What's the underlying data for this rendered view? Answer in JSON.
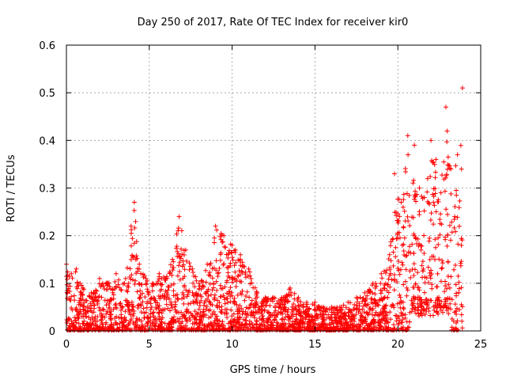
{
  "chart_data": {
    "type": "scatter",
    "title": "Day 250 of 2017, Rate Of TEC Index for receiver kir0",
    "xlabel": "GPS time / hours",
    "ylabel": "ROTI / TECUs",
    "xlim": [
      0,
      25
    ],
    "ylim": [
      0,
      0.6
    ],
    "xticks": [
      0,
      5,
      10,
      15,
      20,
      25
    ],
    "yticks": [
      0,
      0.1,
      0.2,
      0.3,
      0.4,
      0.5,
      0.6
    ],
    "xtick_labels": [
      "0",
      "5",
      "10",
      "15",
      "20",
      "25"
    ],
    "ytick_labels": [
      "0",
      "0.1",
      "0.2",
      "0.3",
      "0.4",
      "0.5",
      "0.6"
    ],
    "grid": true,
    "marker": "+",
    "series": [
      {
        "name": "ROTI",
        "color": "#ff0000",
        "envelope": {
          "hours": [
            0.0,
            0.3,
            0.6,
            1.0,
            1.5,
            2.0,
            2.5,
            3.0,
            3.5,
            3.9,
            4.1,
            4.4,
            4.8,
            5.2,
            5.6,
            6.0,
            6.4,
            6.8,
            7.2,
            7.6,
            8.0,
            8.5,
            9.0,
            9.5,
            10.0,
            10.5,
            11.0,
            11.5,
            12.0,
            12.5,
            13.0,
            13.5,
            14.0,
            14.5,
            15.0,
            15.5,
            16.0,
            16.5,
            17.0,
            17.5,
            18.0,
            18.5,
            19.0,
            19.5,
            19.8,
            20.2,
            20.6,
            21.0,
            21.3,
            21.6,
            22.0,
            22.3,
            22.6,
            22.9,
            23.2,
            23.6,
            23.9
          ],
          "peak": [
            0.14,
            0.12,
            0.13,
            0.09,
            0.08,
            0.11,
            0.1,
            0.12,
            0.1,
            0.22,
            0.27,
            0.14,
            0.11,
            0.1,
            0.12,
            0.11,
            0.15,
            0.24,
            0.17,
            0.13,
            0.1,
            0.14,
            0.22,
            0.2,
            0.18,
            0.16,
            0.13,
            0.08,
            0.07,
            0.07,
            0.07,
            0.09,
            0.07,
            0.06,
            0.06,
            0.05,
            0.05,
            0.05,
            0.06,
            0.07,
            0.08,
            0.1,
            0.12,
            0.16,
            0.33,
            0.27,
            0.41,
            0.39,
            0.3,
            0.28,
            0.4,
            0.36,
            0.29,
            0.47,
            0.34,
            0.37,
            0.51
          ]
        }
      }
    ]
  }
}
